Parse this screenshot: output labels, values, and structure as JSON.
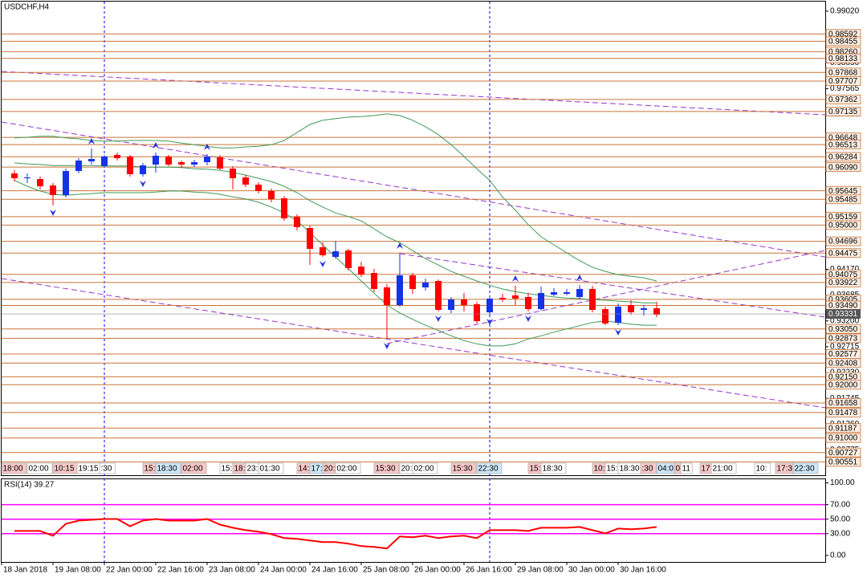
{
  "chart_data": [
    {
      "type": "candlestick",
      "title": "USDCHF,H4",
      "categories": [
        "18 Jan 2018",
        null,
        null,
        null,
        "19 Jan 08:00",
        null,
        null,
        null,
        "22 Jan 00:00",
        null,
        null,
        null,
        "22 Jan 16:00",
        null,
        null,
        null,
        "23 Jan 08:00",
        null,
        null,
        null,
        "24 Jan 00:00",
        null,
        null,
        null,
        "24 Jan 16:00",
        null,
        null,
        null,
        "25 Jan 08:00",
        null,
        null,
        null,
        "26 Jan 00:00",
        null,
        null,
        null,
        "26 Jan 16:00",
        null,
        null,
        null,
        "29 Jan 08:00",
        null,
        null,
        null,
        "30 Jan 00:00",
        null,
        null,
        null,
        "30 Jan 16:00",
        null,
        null
      ],
      "open": [
        0.95972,
        0.95881,
        0.95866,
        0.95746,
        0.95565,
        0.96017,
        0.96198,
        0.96108,
        0.96319,
        0.96289,
        0.95957,
        0.96138,
        0.96289,
        0.96183,
        0.96138,
        0.96183,
        0.96274,
        0.96062,
        0.95896,
        0.95761,
        0.9564,
        0.95504,
        0.95157,
        0.94946,
        0.94584,
        0.94403,
        0.94524,
        0.94222,
        0.94101,
        0.9383,
        0.93498,
        0.94056,
        0.9383,
        0.9395,
        0.93407,
        0.93603,
        0.93513,
        0.93362,
        0.93634,
        0.93679,
        0.93649,
        0.93422,
        0.93694,
        0.93709,
        0.93649,
        0.938,
        0.93422,
        0.93166,
        0.93498,
        0.93407,
        0.93438
      ],
      "high": [
        0.96032,
        0.95972,
        0.95911,
        0.95791,
        0.96062,
        0.96258,
        0.96439,
        0.96319,
        0.96364,
        0.96319,
        0.96168,
        0.96364,
        0.96319,
        0.96213,
        0.96228,
        0.96334,
        0.96319,
        0.96108,
        0.95942,
        0.95806,
        0.95685,
        0.95549,
        0.95203,
        0.94991,
        0.94675,
        0.94705,
        0.94554,
        0.94312,
        0.94177,
        0.9389,
        0.94478,
        0.94101,
        0.93996,
        0.93981,
        0.93649,
        0.93724,
        0.93558,
        0.93664,
        0.93709,
        0.9386,
        0.93724,
        0.93845,
        0.93815,
        0.938,
        0.93875,
        0.9386,
        0.93468,
        0.93528,
        0.93588,
        0.93498,
        0.93558
      ],
      "low": [
        0.95821,
        0.95791,
        0.9567,
        0.95368,
        0.95519,
        0.95972,
        0.96138,
        0.96077,
        0.96213,
        0.95911,
        0.95911,
        0.95987,
        0.96108,
        0.96077,
        0.96093,
        0.96123,
        0.96032,
        0.9567,
        0.95715,
        0.95595,
        0.95429,
        0.95082,
        0.94901,
        0.94252,
        0.94403,
        0.94373,
        0.94147,
        0.94026,
        0.93739,
        0.92864,
        0.93468,
        0.93709,
        0.93769,
        0.93377,
        0.93347,
        0.93377,
        0.93151,
        0.93317,
        0.93558,
        0.93498,
        0.93377,
        0.93392,
        0.93664,
        0.93679,
        0.93603,
        0.93362,
        0.93121,
        0.93121,
        0.93317,
        0.93302,
        0.93272
      ],
      "close": [
        0.95881,
        0.95896,
        0.9573,
        0.95565,
        0.96017,
        0.96213,
        0.96243,
        0.96289,
        0.96258,
        0.95957,
        0.96123,
        0.96304,
        0.96138,
        0.96138,
        0.96183,
        0.96289,
        0.96062,
        0.95881,
        0.95761,
        0.9564,
        0.95489,
        0.95127,
        0.94961,
        0.94554,
        0.94433,
        0.94509,
        0.94192,
        0.94071,
        0.938,
        0.93498,
        0.94056,
        0.938,
        0.9392,
        0.93407,
        0.93603,
        0.93498,
        0.93196,
        0.93619,
        0.93603,
        0.93619,
        0.93422,
        0.93724,
        0.93739,
        0.93739,
        0.938,
        0.93407,
        0.93151,
        0.93468,
        0.93362,
        0.93438,
        0.93317
      ],
      "up_color": "#1533e6",
      "down_color": "#ff0000",
      "bollinger": {
        "color": "#3f9a55",
        "upper": [
          0.9664,
          0.9665,
          0.9667,
          0.9667,
          0.9664,
          0.9662,
          0.9659,
          0.9658,
          0.9658,
          0.9659,
          0.9659,
          0.9659,
          0.9658,
          0.9654,
          0.9651,
          0.9648,
          0.9645,
          0.9645,
          0.9647,
          0.9648,
          0.9651,
          0.9659,
          0.9674,
          0.9689,
          0.9697,
          0.97,
          0.9703,
          0.9704,
          0.9706,
          0.9709,
          0.9706,
          0.9697,
          0.9685,
          0.967,
          0.9651,
          0.9629,
          0.9606,
          0.9584,
          0.9553,
          0.9528,
          0.9501,
          0.9478,
          0.9463,
          0.9448,
          0.9433,
          0.9421,
          0.9413,
          0.9407,
          0.9404,
          0.9401,
          0.9395
        ],
        "middle": [
          0.9617,
          0.9615,
          0.9614,
          0.9612,
          0.9612,
          0.9612,
          0.9612,
          0.9611,
          0.9611,
          0.9611,
          0.9609,
          0.9609,
          0.9609,
          0.9608,
          0.9606,
          0.9605,
          0.9603,
          0.9599,
          0.9594,
          0.9588,
          0.9582,
          0.9573,
          0.9561,
          0.9546,
          0.9534,
          0.9523,
          0.9516,
          0.9508,
          0.9493,
          0.9478,
          0.9467,
          0.9452,
          0.9437,
          0.9425,
          0.9413,
          0.9404,
          0.9395,
          0.9387,
          0.938,
          0.9375,
          0.9371,
          0.9368,
          0.9365,
          0.9363,
          0.9362,
          0.936,
          0.9359,
          0.9357,
          0.9356,
          0.9354,
          0.9354
        ],
        "lower": [
          0.9584,
          0.9573,
          0.9564,
          0.9558,
          0.9556,
          0.9558,
          0.9559,
          0.9561,
          0.9561,
          0.9561,
          0.9561,
          0.9562,
          0.9564,
          0.9564,
          0.9562,
          0.9561,
          0.9558,
          0.9553,
          0.9549,
          0.9543,
          0.9534,
          0.9523,
          0.9508,
          0.9486,
          0.9463,
          0.944,
          0.9418,
          0.9395,
          0.9372,
          0.935,
          0.9335,
          0.9323,
          0.9312,
          0.9302,
          0.9292,
          0.9283,
          0.9277,
          0.9273,
          0.9273,
          0.9277,
          0.9286,
          0.9292,
          0.9299,
          0.9305,
          0.9311,
          0.9317,
          0.932,
          0.9317,
          0.9314,
          0.9312,
          0.9312
        ]
      },
      "ylim": [
        0.903,
        0.992
      ],
      "yticks": [
        {
          "value": 0.9902,
          "label": "0.99020"
        },
        {
          "value": 0.9805,
          "label": "0.98050"
        },
        0.97565,
        {
          "value": 0.9708,
          "label": "0.97080"
        },
        0.96595,
        {
          "value": 0.9611,
          "label": "0.96110"
        },
        0.95625,
        {
          "value": 0.9514,
          "label": "0.95140"
        },
        0.94655,
        {
          "value": 0.9417,
          "label": "0.94170"
        },
        0.93685,
        {
          "value": 0.932,
          "label": "0.93200"
        },
        0.92715,
        {
          "value": 0.9223,
          "label": "0.92230"
        },
        0.91745,
        {
          "value": 0.9126,
          "label": "0.91260"
        },
        0.90775
      ],
      "levels": [
        0.98592,
        0.98455,
        {
          "value": 0.9826,
          "label": "0.98260"
        },
        0.98133,
        0.97868,
        0.97707,
        0.97362,
        0.97135,
        0.96648,
        0.96513,
        0.96284,
        {
          "value": 0.9609,
          "label": "0.96090"
        },
        0.95645,
        0.95485,
        0.95159,
        {
          "value": 0.95,
          "label": "0.95000"
        },
        0.94696,
        0.94475,
        0.94075,
        0.93922,
        0.93605,
        {
          "value": 0.9349,
          "label": "0.93490"
        },
        {
          "value": 0.9305,
          "label": "0.93050"
        },
        0.92873,
        0.92577,
        0.92408,
        {
          "value": 0.9215,
          "label": "0.92150"
        },
        {
          "value": 0.92,
          "label": "0.92000"
        },
        0.91658,
        0.91478,
        0.91187,
        {
          "value": 0.91,
          "label": "0.91000"
        },
        0.90727,
        0.90551
      ],
      "level_color": "#c8743a",
      "last_price": 0.93331,
      "session_labels": [
        "18:00",
        "02:00",
        "10:15",
        "19:15",
        ":30",
        "15:",
        "18:30",
        "02:00",
        "15:",
        "18:",
        "23:",
        "01:30",
        "14:",
        "17:",
        "20:",
        "02:00",
        "15:30",
        "20:",
        "02:00",
        "15:30",
        "22:30",
        "15:",
        "18:30",
        "10:",
        "15:",
        "18:30",
        ":30",
        "04:0",
        "0",
        "11",
        "17",
        "21:00",
        "10:",
        "17:3",
        "22:30"
      ]
    },
    {
      "type": "line",
      "title": "RSI(14) 39.27",
      "color": "#ff0000",
      "values": [
        33.7,
        33.7,
        33.7,
        27.2,
        43.6,
        48.0,
        49.1,
        50.2,
        50.2,
        40.3,
        48.0,
        50.2,
        48.0,
        48.0,
        48.0,
        50.2,
        42.5,
        38.1,
        34.8,
        32.6,
        29.3,
        23.9,
        22.8,
        20.6,
        18.4,
        18.4,
        16.2,
        12.9,
        11.8,
        9.6,
        26.1,
        25.0,
        27.2,
        23.9,
        26.1,
        27.2,
        23.9,
        34.8,
        34.8,
        34.8,
        33.7,
        38.1,
        38.1,
        38.1,
        39.3,
        34.8,
        30.4,
        37.0,
        36.0,
        37.0,
        39.27
      ],
      "ylim": [
        -9,
        105
      ],
      "yticks": [
        {
          "value": 100,
          "label": "100.00"
        },
        {
          "value": 70,
          "label": "70.00"
        },
        {
          "value": 50,
          "label": "50.00"
        },
        {
          "value": 30,
          "label": "30.00"
        },
        {
          "value": 0,
          "label": "0.00"
        }
      ],
      "levels": [
        70,
        50,
        30
      ],
      "level_color": "#ff00ff"
    }
  ]
}
